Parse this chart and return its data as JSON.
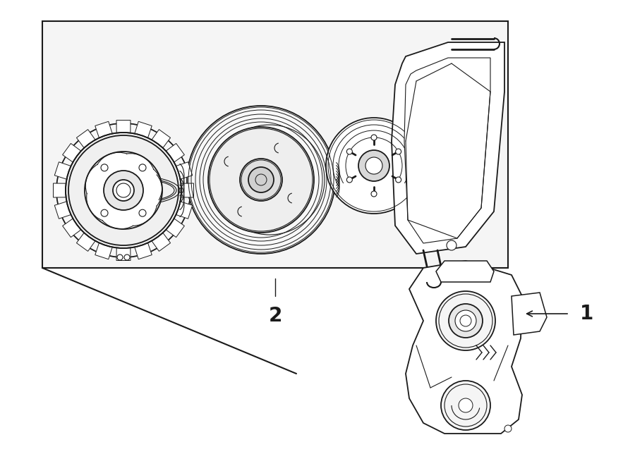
{
  "background_color": "#ffffff",
  "line_color": "#1a1a1a",
  "fig_width": 9.0,
  "fig_height": 6.61,
  "dpi": 100,
  "label1": "1",
  "label2": "2"
}
